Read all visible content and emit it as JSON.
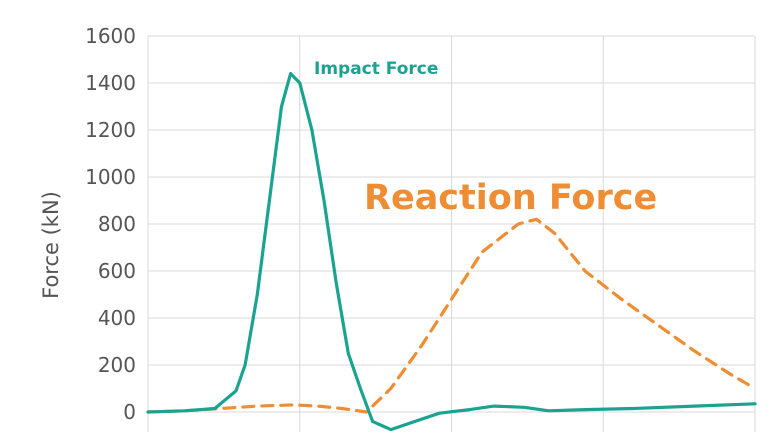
{
  "chart_data": {
    "type": "line",
    "title": "",
    "xlabel": "",
    "ylabel": "Force (kN)",
    "ylim": [
      0,
      1600
    ],
    "xlim": [
      0,
      100
    ],
    "yticks": [
      "0",
      "200",
      "400",
      "600",
      "800",
      "1000",
      "1200",
      "1400",
      "1600"
    ],
    "grid": true,
    "x_tick_labels_visible": false,
    "series": [
      {
        "name": "Impact Force",
        "style": "solid",
        "color": "#1ba391",
        "points": [
          [
            0,
            0
          ],
          [
            6,
            5
          ],
          [
            11,
            15
          ],
          [
            14.5,
            90
          ],
          [
            16,
            200
          ],
          [
            18,
            500
          ],
          [
            20,
            900
          ],
          [
            22,
            1300
          ],
          [
            23.5,
            1440
          ],
          [
            25,
            1400
          ],
          [
            27,
            1200
          ],
          [
            29,
            900
          ],
          [
            31,
            550
          ],
          [
            33,
            250
          ],
          [
            35,
            100
          ],
          [
            37,
            -40
          ],
          [
            40,
            -75
          ],
          [
            44,
            -40
          ],
          [
            48,
            -5
          ],
          [
            53,
            10
          ],
          [
            57,
            25
          ],
          [
            62,
            20
          ],
          [
            66,
            5
          ],
          [
            72,
            10
          ],
          [
            80,
            15
          ],
          [
            90,
            25
          ],
          [
            100,
            35
          ]
        ]
      },
      {
        "name": "Reaction Force",
        "style": "dashed",
        "color": "#ee8d33",
        "points": [
          [
            0,
            0
          ],
          [
            6,
            5
          ],
          [
            12,
            15
          ],
          [
            18,
            25
          ],
          [
            24,
            30
          ],
          [
            28,
            25
          ],
          [
            32,
            15
          ],
          [
            36,
            0
          ],
          [
            40,
            100
          ],
          [
            45,
            280
          ],
          [
            50,
            480
          ],
          [
            55,
            680
          ],
          [
            61,
            800
          ],
          [
            64,
            820
          ],
          [
            67,
            760
          ],
          [
            72,
            600
          ],
          [
            78,
            480
          ],
          [
            84,
            370
          ],
          [
            90,
            260
          ],
          [
            96,
            160
          ],
          [
            100,
            100
          ]
        ]
      }
    ],
    "annotations": [
      {
        "text": "Impact Force",
        "color": "#1ba391"
      },
      {
        "text": "Reaction Force",
        "color": "#ee8d33"
      }
    ]
  }
}
